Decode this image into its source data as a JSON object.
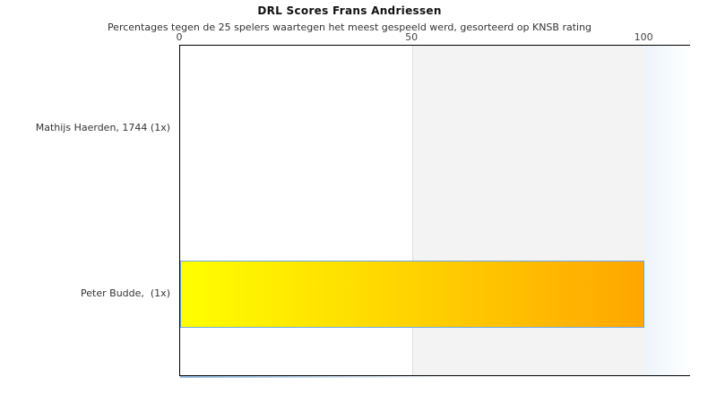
{
  "chart_data": {
    "type": "bar",
    "orientation": "horizontal",
    "title": "DRL Scores Frans Andriessen",
    "subtitle": "Percentages tegen de 25 spelers waartegen het meest gespeeld werd, gesorteerd op KNSB rating",
    "categories": [
      "Mathijs Haerden, 1744 (1x)",
      "Peter Budde,  (1x)"
    ],
    "values": [
      0,
      100
    ],
    "xlim": [
      0,
      110
    ],
    "xtick_labels": [
      "0",
      "50",
      "100"
    ],
    "xtick_values": [
      0,
      50,
      100
    ],
    "grid": false,
    "legend": false,
    "shaded_band": {
      "from": 50,
      "to": 100,
      "color": "#f3f3f3"
    },
    "overflow_fade": {
      "from": 100,
      "to": 110
    },
    "bar_style": {
      "gradient_start": "#ffff00",
      "gradient_end": "#ffa600",
      "border_color": "#6fa8dc"
    },
    "plot_border_color": "#000000"
  }
}
